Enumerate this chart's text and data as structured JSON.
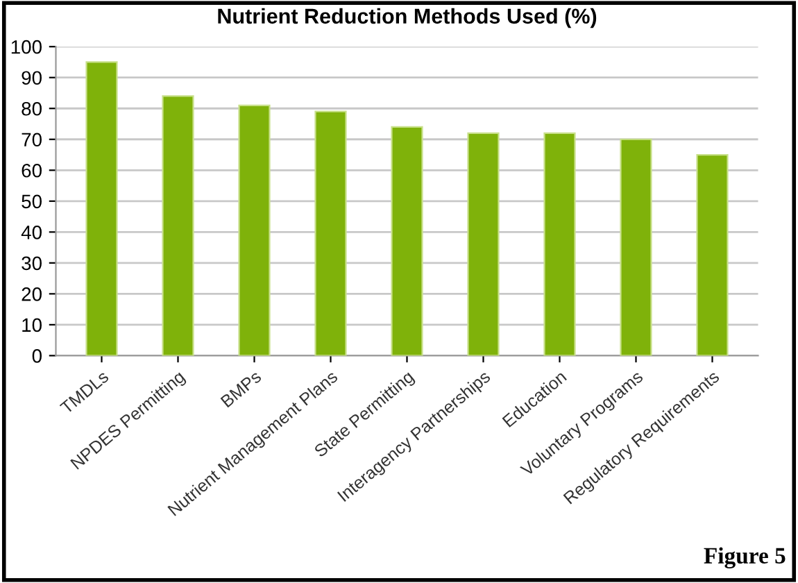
{
  "chart_data": {
    "type": "bar",
    "title": "Nutrient Reduction Methods Used (%)",
    "categories": [
      "TMDLs",
      "NPDES Permitting",
      "BMPs",
      "Nutrient Management Plans",
      "State Permitting",
      "Interagency Partnerships",
      "Education",
      "Voluntary Programs",
      "Regulatory Requirements"
    ],
    "values": [
      95,
      84,
      81,
      79,
      74,
      72,
      72,
      70,
      65
    ],
    "color": "#7fb20a",
    "ylim": [
      0,
      100
    ],
    "yticks": [
      0,
      10,
      20,
      30,
      40,
      50,
      60,
      70,
      80,
      90,
      100
    ],
    "grid": "y",
    "annotations": [
      "Figure 5"
    ]
  }
}
